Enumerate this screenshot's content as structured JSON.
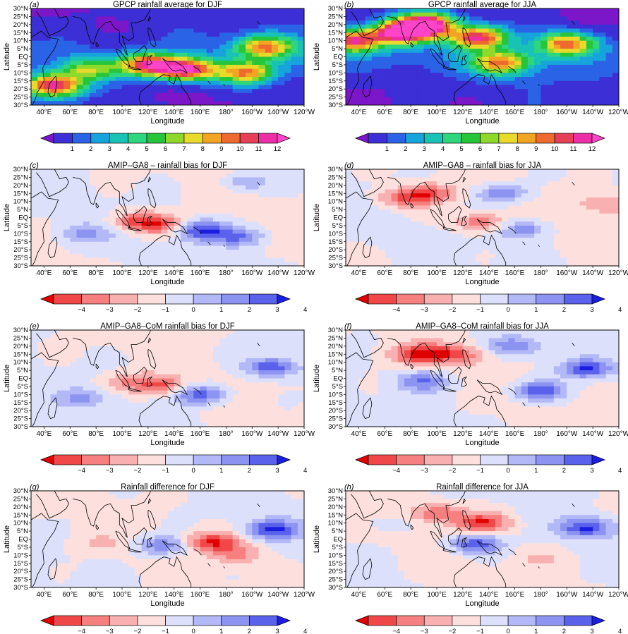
{
  "figure": {
    "panels": [
      {
        "letter": "(a)",
        "title": "GPCP rainfall average for DJF",
        "colorbar": "rain"
      },
      {
        "letter": "(b)",
        "title": "GPCP rainfall average for JJA",
        "colorbar": "rain"
      },
      {
        "letter": "(c)",
        "title": "AMIP–GA8 – rainfall bias for DJF",
        "colorbar": "bias"
      },
      {
        "letter": "(d)",
        "title": "AMIP–GA8 – rainfall bias for JJA",
        "colorbar": "bias"
      },
      {
        "letter": "(e)",
        "title": "AMIP–GA8–CoM rainfall bias for DJF",
        "colorbar": "bias"
      },
      {
        "letter": "(f)",
        "title": "AMIP–GA8–CoM rainfall bias for JJA",
        "colorbar": "bias"
      },
      {
        "letter": "(g)",
        "title": "Rainfall difference for DJF",
        "colorbar": "bias"
      },
      {
        "letter": "(h)",
        "title": "Rainfall difference for JJA",
        "colorbar": "bias"
      }
    ],
    "xlabel": "Longitude",
    "ylabel": "Latitude",
    "xticks": [
      "40°E",
      "60°E",
      "80°E",
      "100°E",
      "120°E",
      "140°E",
      "160°E",
      "180°",
      "160°W",
      "140°W",
      "120°W"
    ],
    "yticks": [
      "30°N",
      "25°N",
      "20°N",
      "15°N",
      "10°N",
      "5°N",
      "EQ",
      "5°S",
      "10°S",
      "15°S",
      "20°S",
      "25°S",
      "30°S"
    ],
    "rain_colorbar": {
      "labels": [
        "1",
        "2",
        "3",
        "4",
        "5",
        "6",
        "7",
        "8",
        "9",
        "10",
        "11",
        "12"
      ],
      "colors": [
        "#7b16c9",
        "#3d2fd6",
        "#2a63e6",
        "#17a4dc",
        "#18c3b6",
        "#2ed67d",
        "#27c53a",
        "#8fd92c",
        "#e8d92a",
        "#f2a525",
        "#ee6a2e",
        "#e63f57",
        "#ee2ea8",
        "#ff44c9"
      ]
    },
    "bias_colorbar": {
      "labels": [
        "−4",
        "−3",
        "−2",
        "−1",
        "0",
        "1",
        "2",
        "3",
        "4"
      ],
      "colors": [
        "#e00000",
        "#f04848",
        "#f68080",
        "#f9b0b0",
        "#fde0de",
        "#dde0fb",
        "#b3b8f6",
        "#8c93f1",
        "#5a61ea",
        "#1a1ee0"
      ]
    }
  },
  "chart_data": [
    {
      "type": "heatmap",
      "panel": "(a)",
      "title": "GPCP rainfall average for DJF",
      "xlabel": "Longitude",
      "ylabel": "Latitude",
      "xlim": [
        "30°E",
        "120°W"
      ],
      "ylim": [
        "30°S",
        "30°N"
      ],
      "features": [
        {
          "lon": 150,
          "lat": -8,
          "value": 11
        },
        {
          "lon": 120,
          "lat": -5,
          "value": 10
        },
        {
          "lon": 195,
          "lat": -10,
          "value": 8
        },
        {
          "lon": 210,
          "lat": 6,
          "value": 8
        },
        {
          "lon": 48,
          "lat": -18,
          "value": 11
        },
        {
          "lon": 75,
          "lat": -8,
          "value": 6
        }
      ]
    },
    {
      "type": "heatmap",
      "panel": "(b)",
      "title": "GPCP rainfall average for JJA",
      "xlabel": "Longitude",
      "ylabel": "Latitude",
      "xlim": [
        "30°E",
        "120°W"
      ],
      "ylim": [
        "30°S",
        "30°N"
      ],
      "features": [
        {
          "lon": 92,
          "lat": 20,
          "value": 12
        },
        {
          "lon": 73,
          "lat": 15,
          "value": 12
        },
        {
          "lon": 132,
          "lat": 12,
          "value": 10
        },
        {
          "lon": 200,
          "lat": 8,
          "value": 9
        },
        {
          "lon": 150,
          "lat": -4,
          "value": 8
        },
        {
          "lon": 35,
          "lat": 10,
          "value": 10
        }
      ]
    },
    {
      "type": "heatmap",
      "panel": "(c)",
      "title": "AMIP–GA8 – rainfall bias for DJF",
      "xlabel": "Longitude",
      "ylabel": "Latitude",
      "xlim": [
        "30°E",
        "120°W"
      ],
      "ylim": [
        "30°S",
        "30°N"
      ],
      "features": [
        {
          "lon": 112,
          "lat": -2,
          "value": -3
        },
        {
          "lon": 130,
          "lat": -5,
          "value": -3
        },
        {
          "lon": 160,
          "lat": -8,
          "value": 4
        },
        {
          "lon": 190,
          "lat": -12,
          "value": 3
        },
        {
          "lon": 70,
          "lat": -10,
          "value": 2
        },
        {
          "lon": 195,
          "lat": 22,
          "value": 2
        }
      ]
    },
    {
      "type": "heatmap",
      "panel": "(d)",
      "title": "AMIP–GA8 – rainfall bias for JJA",
      "xlabel": "Longitude",
      "ylabel": "Latitude",
      "xlim": [
        "30°E",
        "120°W"
      ],
      "ylim": [
        "30°S",
        "30°N"
      ],
      "features": [
        {
          "lon": 95,
          "lat": 15,
          "value": -3
        },
        {
          "lon": 75,
          "lat": 12,
          "value": -3
        },
        {
          "lon": 150,
          "lat": 15,
          "value": 3
        },
        {
          "lon": 135,
          "lat": -3,
          "value": -3
        },
        {
          "lon": 165,
          "lat": -7,
          "value": 3
        },
        {
          "lon": 230,
          "lat": 8,
          "value": -2
        }
      ]
    },
    {
      "type": "heatmap",
      "panel": "(e)",
      "title": "AMIP–GA8–CoM rainfall bias for DJF",
      "xlabel": "Longitude",
      "ylabel": "Latitude",
      "xlim": [
        "30°E",
        "120°W"
      ],
      "ylim": [
        "30°S",
        "30°N"
      ],
      "features": [
        {
          "lon": 105,
          "lat": -2,
          "value": -2
        },
        {
          "lon": 130,
          "lat": -5,
          "value": -3
        },
        {
          "lon": 160,
          "lat": -10,
          "value": 4
        },
        {
          "lon": 215,
          "lat": 7,
          "value": 4
        },
        {
          "lon": 70,
          "lat": -12,
          "value": 2
        }
      ]
    },
    {
      "type": "heatmap",
      "panel": "(f)",
      "title": "AMIP–GA8–CoM rainfall bias for JJA",
      "xlabel": "Longitude",
      "ylabel": "Latitude",
      "xlim": [
        "30°E",
        "120°W"
      ],
      "ylim": [
        "30°S",
        "30°N"
      ],
      "features": [
        {
          "lon": 85,
          "lat": 15,
          "value": -4
        },
        {
          "lon": 115,
          "lat": 15,
          "value": -3
        },
        {
          "lon": 160,
          "lat": 20,
          "value": 3
        },
        {
          "lon": 180,
          "lat": -8,
          "value": 4
        },
        {
          "lon": 215,
          "lat": 6,
          "value": 4
        },
        {
          "lon": 90,
          "lat": -2,
          "value": 3
        }
      ]
    },
    {
      "type": "heatmap",
      "panel": "(g)",
      "title": "Rainfall difference for DJF",
      "xlabel": "Longitude",
      "ylabel": "Latitude",
      "xlim": [
        "30°E",
        "120°W"
      ],
      "ylim": [
        "30°S",
        "30°N"
      ],
      "features": [
        {
          "lon": 170,
          "lat": -2,
          "value": -4
        },
        {
          "lon": 190,
          "lat": -10,
          "value": -2
        },
        {
          "lon": 215,
          "lat": 6,
          "value": 4
        },
        {
          "lon": 130,
          "lat": -4,
          "value": 3
        },
        {
          "lon": 80,
          "lat": -3,
          "value": -1
        }
      ]
    },
    {
      "type": "heatmap",
      "panel": "(h)",
      "title": "Rainfall difference for JJA",
      "xlabel": "Longitude",
      "ylabel": "Latitude",
      "xlim": [
        "30°E",
        "120°W"
      ],
      "ylim": [
        "30°S",
        "30°N"
      ],
      "features": [
        {
          "lon": 135,
          "lat": 10,
          "value": -4
        },
        {
          "lon": 100,
          "lat": 16,
          "value": -3
        },
        {
          "lon": 130,
          "lat": -3,
          "value": 4
        },
        {
          "lon": 215,
          "lat": 7,
          "value": 4
        },
        {
          "lon": 65,
          "lat": 10,
          "value": 1
        },
        {
          "lon": 180,
          "lat": -12,
          "value": -1
        }
      ]
    }
  ]
}
